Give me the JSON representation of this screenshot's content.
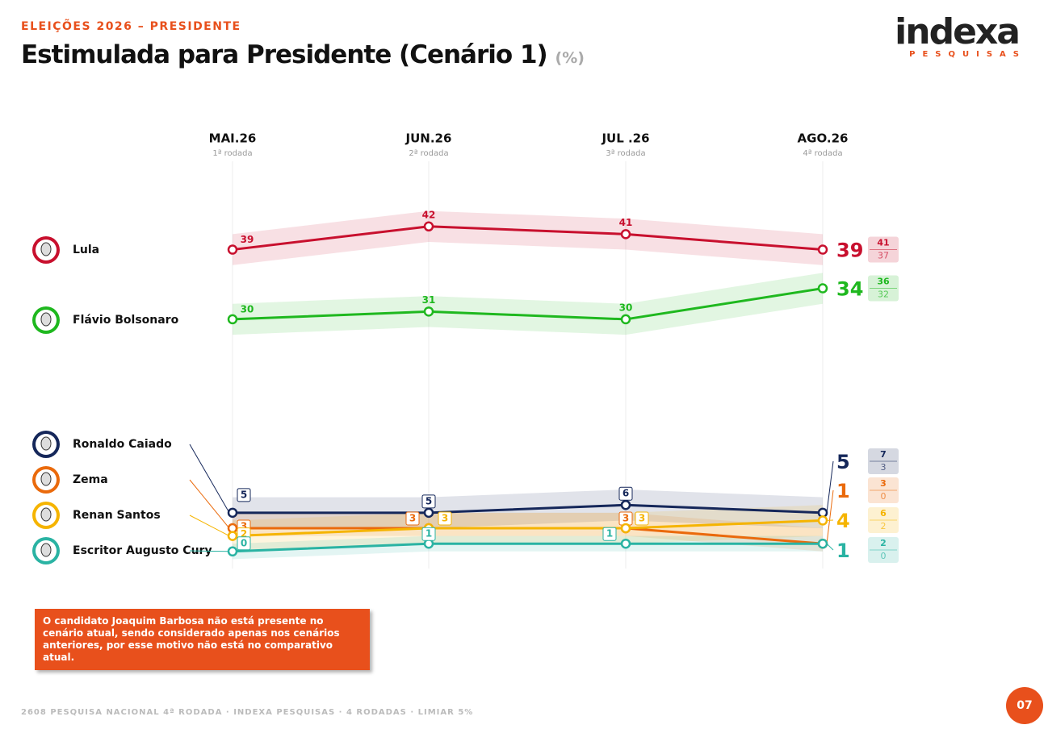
{
  "header": {
    "kicker": "ELEIÇÕES 2026 – PRESIDENTE",
    "title": "Estimulada para Presidente (Cenário 1)",
    "unit": "(%)"
  },
  "logo": {
    "name": "indexa",
    "tagline": "PESQUISAS"
  },
  "chart_data": {
    "type": "line",
    "categories": [
      "MAI.26",
      "JUN.26",
      "JUL .26",
      "AGO.26"
    ],
    "subcategories": [
      "1ª rodada",
      "2ª rodada",
      "3ª rodada",
      "4ª rodada"
    ],
    "ylim": [
      -2,
      50
    ],
    "series": [
      {
        "name": "Lula",
        "color": "#c8102e",
        "values": [
          39,
          42,
          41,
          39
        ],
        "range_high": 41,
        "range_low": 37
      },
      {
        "name": "Flávio Bolsonaro",
        "color": "#1fb81f",
        "values": [
          30,
          31,
          30,
          34
        ],
        "range_high": 36,
        "range_low": 32
      },
      {
        "name": "Ronaldo Caiado",
        "color": "#15275a",
        "values": [
          5,
          5,
          6,
          5
        ],
        "range_high": 7,
        "range_low": 3
      },
      {
        "name": "Zema",
        "color": "#ea6a0c",
        "values": [
          3,
          3,
          3,
          1
        ],
        "range_high": 3,
        "range_low": 0
      },
      {
        "name": "Renan Santos",
        "color": "#f5b400",
        "values": [
          2,
          3,
          3,
          4
        ],
        "range_high": 6,
        "range_low": 2
      },
      {
        "name": "Escritor Augusto Cury",
        "color": "#2ab3a3",
        "values": [
          0,
          1,
          1,
          1
        ],
        "range_high": 2,
        "range_low": 0
      }
    ]
  },
  "note": "O candidato Joaquim Barbosa não está presente no cenário atual, sendo considerado apenas nos cenários anteriores, por esse motivo não está no comparativo atual.",
  "footer": "2608 PESQUISA NACIONAL 4ª RODADA · INDEXA PESQUISAS · 4 RODADAS · LIMIAR 5%",
  "page": "07"
}
